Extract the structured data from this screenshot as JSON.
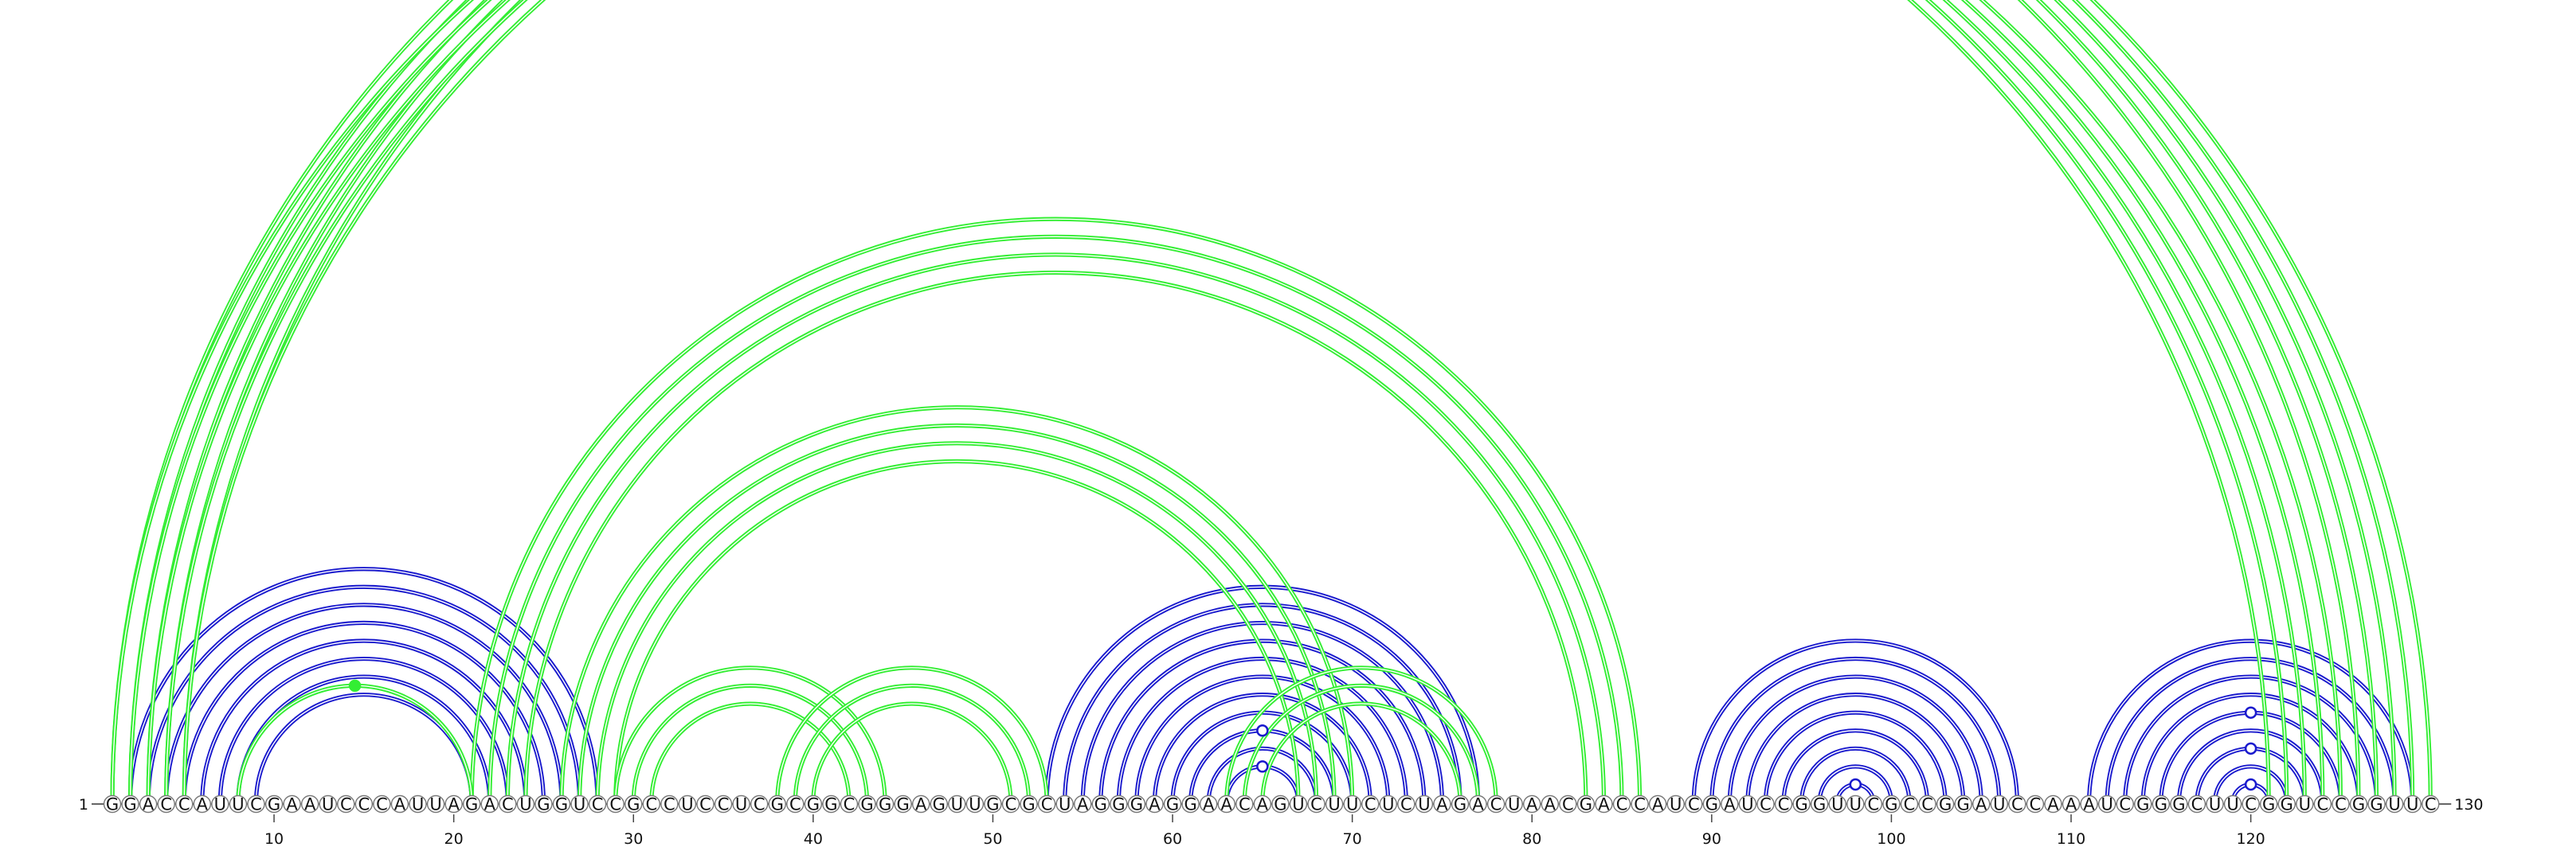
{
  "sequence": "GGACCAUUCGAAUCCCAUUAGACUGGUCCGCCUCCUCGCGGCGGGAGUUGCGCUAGGGAGGAACAGUCUUCUCUAGACUAACGACCAUCGAUCCGGUUCGCCGGAUCCAAAUCGGGCUUCGGUCCGGUUC",
  "start_label": "1",
  "end_label": "130",
  "ticks": [
    "10",
    "20",
    "30",
    "40",
    "50",
    "60",
    "70",
    "80",
    "90",
    "100",
    "110",
    "120"
  ],
  "colors": {
    "blue": "#1a1acd",
    "green": "#33ee33"
  },
  "blue_arcs": [
    [
      2,
      28
    ],
    [
      3,
      27
    ],
    [
      4,
      26
    ],
    [
      5,
      25
    ],
    [
      6,
      24
    ],
    [
      7,
      23
    ],
    [
      8,
      22
    ],
    [
      9,
      21
    ],
    [
      53,
      77
    ],
    [
      54,
      76
    ],
    [
      55,
      75
    ],
    [
      56,
      74
    ],
    [
      57,
      73
    ],
    [
      58,
      72
    ],
    [
      59,
      71
    ],
    [
      60,
      70
    ],
    [
      61,
      69
    ],
    [
      62,
      68
    ],
    [
      63,
      67
    ],
    [
      89,
      107
    ],
    [
      90,
      106
    ],
    [
      91,
      105
    ],
    [
      92,
      104
    ],
    [
      93,
      103
    ],
    [
      94,
      102
    ],
    [
      95,
      101
    ],
    [
      96,
      100
    ],
    [
      97,
      99
    ],
    [
      111,
      129
    ],
    [
      112,
      128
    ],
    [
      113,
      127
    ],
    [
      114,
      126
    ],
    [
      115,
      125
    ],
    [
      116,
      124
    ],
    [
      117,
      123
    ],
    [
      118,
      122
    ],
    [
      119,
      121
    ]
  ],
  "green_arcs": [
    [
      1,
      126
    ],
    [
      2,
      127
    ],
    [
      3,
      128
    ],
    [
      4,
      129
    ],
    [
      5,
      130
    ],
    [
      1,
      121
    ],
    [
      2,
      122
    ],
    [
      3,
      123
    ],
    [
      4,
      124
    ],
    [
      5,
      125
    ],
    [
      21,
      86
    ],
    [
      22,
      85
    ],
    [
      23,
      84
    ],
    [
      24,
      83
    ],
    [
      26,
      70
    ],
    [
      27,
      69
    ],
    [
      28,
      68
    ],
    [
      29,
      67
    ],
    [
      29,
      44
    ],
    [
      30,
      43
    ],
    [
      31,
      42
    ],
    [
      38,
      53
    ],
    [
      39,
      52
    ],
    [
      40,
      51
    ],
    [
      63,
      78
    ],
    [
      64,
      77
    ],
    [
      65,
      76
    ],
    [
      8,
      21
    ]
  ],
  "green_markers": [
    [
      1,
      126
    ],
    [
      8,
      21
    ]
  ],
  "blue_markers": [
    [
      63,
      67
    ],
    [
      61,
      69
    ],
    [
      119,
      121
    ],
    [
      117,
      123
    ],
    [
      115,
      125
    ],
    [
      97,
      99
    ]
  ]
}
